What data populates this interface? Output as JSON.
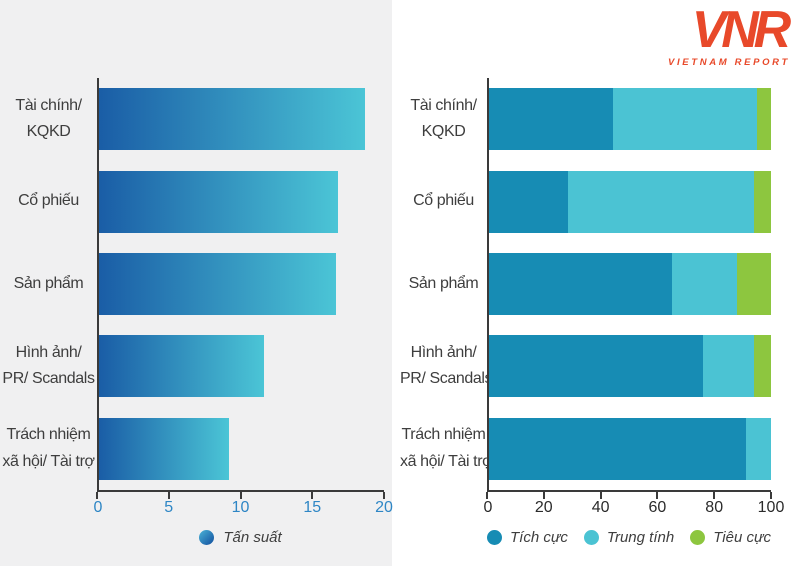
{
  "logo": {
    "text": "VNR",
    "subtext": "VIETNAM REPORT",
    "color": "#E8492A"
  },
  "colors": {
    "panel_bg": "#F0F0F1",
    "bar_gradient_from": "#1A5DA6",
    "bar_gradient_to": "#4BC5D6",
    "axis": "#3A3A3A",
    "label_text": "#3E3E3E",
    "left_tick_text": "#2E86C5",
    "right_tick_text": "#2B2B2B"
  },
  "chart_data": [
    {
      "type": "bar",
      "orientation": "horizontal",
      "title": "",
      "categories": [
        "Tài chính/ KQKD",
        "Cổ phiếu",
        "Sản phẩm",
        "Hình ảnh/ PR/ Scandals",
        "Trách nhiệm xã hội/ Tài trợ"
      ],
      "category_lines": [
        [
          "Tài chính/",
          "KQKD"
        ],
        [
          "Cổ phiếu",
          ""
        ],
        [
          "Sản phẩm",
          ""
        ],
        [
          "Hình ảnh/",
          "PR/ Scandals"
        ],
        [
          "Trách nhiệm",
          "xã hội/ Tài trợ"
        ]
      ],
      "values": [
        18.7,
        16.8,
        16.6,
        11.6,
        9.1
      ],
      "xlim": [
        0,
        20
      ],
      "xticks": [
        0,
        5,
        10,
        15,
        20
      ],
      "grid": false,
      "legend_position": "bottom",
      "legend": [
        {
          "label": "Tấn suất"
        }
      ]
    },
    {
      "type": "stacked_bar",
      "orientation": "horizontal",
      "title": "",
      "categories": [
        "Tài chính/ KQKD",
        "Cổ phiếu",
        "Sản phẩm",
        "Hình ảnh/ PR/ Scandals",
        "Trách nhiệm xã hội/ Tài trợ"
      ],
      "category_lines": [
        [
          "Tài chính/",
          "KQKD"
        ],
        [
          "Cổ phiếu",
          ""
        ],
        [
          "Sản phẩm",
          ""
        ],
        [
          "Hình ảnh/",
          "PR/ Scandals"
        ],
        [
          "Trách nhiệm",
          "xã hội/ Tài trợ"
        ]
      ],
      "series": [
        {
          "name": "Tích cực",
          "color": "#178CB4",
          "values": [
            44,
            28,
            65,
            76,
            91
          ]
        },
        {
          "name": "Trung tính",
          "color": "#4BC3D3",
          "values": [
            51,
            66,
            23,
            18,
            9
          ]
        },
        {
          "name": "Tiêu cực",
          "color": "#8DC63F",
          "values": [
            5,
            6,
            12,
            6,
            0
          ]
        }
      ],
      "xlim": [
        0,
        100
      ],
      "xticks": [
        0,
        20,
        40,
        60,
        80,
        100
      ],
      "grid": false,
      "legend_position": "bottom"
    }
  ]
}
